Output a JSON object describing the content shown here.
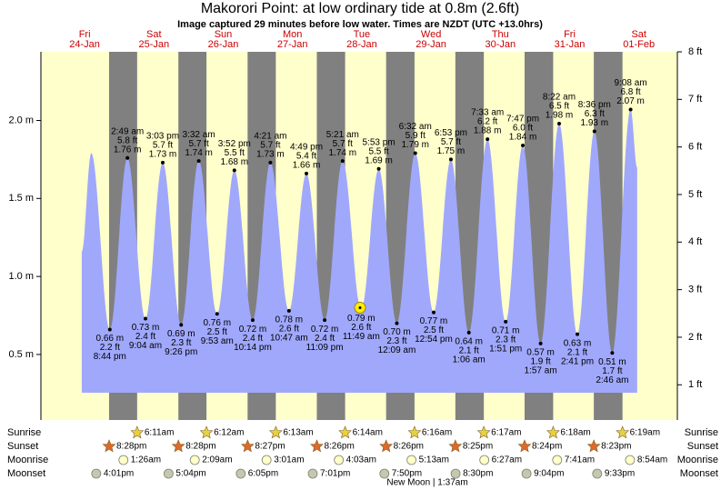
{
  "chart_data": {
    "type": "area",
    "title": "Makorori Point: at low  ordinary tide at 0.8m (2.6ft)",
    "subtitle": "Image captured 29 minutes before low water. Times are NZDT (UTC +13.0hrs)",
    "xlim": [
      -3.15,
      217.32
    ],
    "ylim": [
      0.08,
      2.44
    ],
    "y2lim": [
      0.26,
      8.0
    ],
    "yticks": [
      {
        "value": 0.5,
        "label": "0.5 m"
      },
      {
        "value": 1.0,
        "label": "1.0 m"
      },
      {
        "value": 1.5,
        "label": "1.5 m"
      },
      {
        "value": 2.0,
        "label": "2.0 m"
      }
    ],
    "y2ticks": [
      {
        "value": 1,
        "label": "1 ft"
      },
      {
        "value": 2,
        "label": "2 ft"
      },
      {
        "value": 3,
        "label": "3 ft"
      },
      {
        "value": 4,
        "label": "4 ft"
      },
      {
        "value": 5,
        "label": "5 ft"
      },
      {
        "value": 6,
        "label": "6 ft"
      },
      {
        "value": 7,
        "label": "7 ft"
      },
      {
        "value": 8,
        "label": "8 ft"
      }
    ],
    "day_color": "#ffffcc",
    "night_color": "#808080",
    "days": [
      {
        "name": "Fri",
        "date": "24-Jan",
        "x": 12
      },
      {
        "name": "Sat",
        "date": "25-Jan",
        "x": 36
      },
      {
        "name": "Sun",
        "date": "26-Jan",
        "x": 60
      },
      {
        "name": "Mon",
        "date": "27-Jan",
        "x": 84
      },
      {
        "name": "Tue",
        "date": "28-Jan",
        "x": 108
      },
      {
        "name": "Wed",
        "date": "29-Jan",
        "x": 132
      },
      {
        "name": "Thu",
        "date": "30-Jan",
        "x": 156
      },
      {
        "name": "Fri",
        "date": "31-Jan",
        "x": 180
      },
      {
        "name": "Sat",
        "date": "01-Feb",
        "x": 204
      }
    ],
    "series": [
      {
        "color": "#a0a8fc",
        "x": [
          11.0,
          14.3,
          20.73,
          26.82,
          33.07,
          39.05,
          45.43,
          51.53,
          57.88,
          63.87,
          70.23,
          76.35,
          82.78,
          88.82,
          95.15,
          101.35,
          107.82,
          113.88,
          120.15,
          126.53,
          132.9,
          138.88,
          145.1,
          151.55,
          157.85,
          163.78,
          169.95,
          176.37,
          182.68,
          188.6,
          194.77,
          201.13,
          203.4
        ],
        "values": [
          1.16,
          1.79,
          0.66,
          1.76,
          0.73,
          1.73,
          0.69,
          1.74,
          0.76,
          1.68,
          0.72,
          1.73,
          0.78,
          1.66,
          0.72,
          1.74,
          0.79,
          1.69,
          0.7,
          1.79,
          0.77,
          1.75,
          0.64,
          1.88,
          0.71,
          1.84,
          0.57,
          1.98,
          0.63,
          1.93,
          0.51,
          2.07,
          1.7
        ],
        "value_labels": [
          null,
          null,
          "0.66 m",
          "1.76 m",
          "0.73 m",
          "1.73 m",
          "0.69 m",
          "1.74 m",
          "0.76 m",
          "1.68 m",
          "0.72 m",
          "1.73 m",
          "0.78 m",
          "1.66 m",
          "0.72 m",
          "1.74 m",
          "0.79 m",
          "1.69 m",
          "0.70 m",
          "1.79 m",
          "0.77 m",
          "1.75 m",
          "0.64 m",
          "1.88 m",
          "0.71 m",
          "1.84 m",
          "0.57 m",
          "1.98 m",
          "0.63 m",
          "1.93 m",
          "0.51 m",
          "2.07 m",
          null
        ],
        "ft_labels": [
          null,
          null,
          "2.2 ft",
          "5.8 ft",
          "2.4 ft",
          "5.7 ft",
          "2.3 ft",
          "5.7 ft",
          "2.5 ft",
          "5.5 ft",
          "2.4 ft",
          "5.7 ft",
          "2.6 ft",
          "5.4 ft",
          "2.4 ft",
          "5.7 ft",
          "2.6 ft",
          "5.5 ft",
          "2.3 ft",
          "5.9 ft",
          "2.5 ft",
          "5.7 ft",
          "2.1 ft",
          "6.2 ft",
          "2.3 ft",
          "6.0 ft",
          "1.9 ft",
          "6.5 ft",
          "2.1 ft",
          "6.3 ft",
          "1.7 ft",
          "6.8 ft",
          null
        ],
        "time_labels": [
          null,
          null,
          "8:44 pm",
          "2:49 am",
          "9:04 am",
          "3:03 pm",
          "9:26 pm",
          "3:32 am",
          "9:53 am",
          "3:52 pm",
          "10:14 pm",
          "4:21 am",
          "10:47 am",
          "4:49 pm",
          "11:09 pm",
          "5:21 am",
          "11:49 am",
          "5:53 pm",
          "12:09 am",
          "6:32 am",
          "12:54 pm",
          "6:53 pm",
          "1:06 am",
          "7:33 am",
          "1:51 pm",
          "7:47 pm",
          "1:57 am",
          "8:22 am",
          "2:41 pm",
          "8:36 pm",
          "2:46 am",
          "9:08 am",
          null
        ]
      }
    ],
    "now": {
      "x": 107.4,
      "value": 0.8,
      "color": "#ffee00"
    },
    "rows": [
      {
        "label": "Sunrise",
        "icon": "star",
        "color": "#e8d040",
        "events": [
          {
            "time": "6:11am",
            "x": 30.18
          },
          {
            "time": "6:12am",
            "x": 54.2
          },
          {
            "time": "6:13am",
            "x": 78.22
          },
          {
            "time": "6:14am",
            "x": 102.23
          },
          {
            "time": "6:16am",
            "x": 126.27
          },
          {
            "time": "6:17am",
            "x": 150.28
          },
          {
            "time": "6:18am",
            "x": 174.3
          },
          {
            "time": "6:19am",
            "x": 198.32
          }
        ]
      },
      {
        "label": "Sunset",
        "icon": "star",
        "color": "#e06828",
        "events": [
          {
            "time": "8:28pm",
            "x": 20.47
          },
          {
            "time": "8:28pm",
            "x": 44.47
          },
          {
            "time": "8:27pm",
            "x": 68.45
          },
          {
            "time": "8:26pm",
            "x": 92.43
          },
          {
            "time": "8:26pm",
            "x": 116.43
          },
          {
            "time": "8:25pm",
            "x": 140.42
          },
          {
            "time": "8:24pm",
            "x": 164.4
          },
          {
            "time": "8:23pm",
            "x": 188.38
          }
        ]
      },
      {
        "label": "Moonrise",
        "icon": "circle",
        "color": "#ffffc8",
        "events": [
          {
            "time": "1:26am",
            "x": 25.43
          },
          {
            "time": "2:09am",
            "x": 50.15
          },
          {
            "time": "3:01am",
            "x": 75.02
          },
          {
            "time": "4:03am",
            "x": 100.05
          },
          {
            "time": "5:13am",
            "x": 125.22
          },
          {
            "time": "6:27am",
            "x": 150.45
          },
          {
            "time": "7:41am",
            "x": 175.68
          },
          {
            "time": "8:54am",
            "x": 200.9
          }
        ]
      },
      {
        "label": "Moonset",
        "icon": "circle",
        "color": "#c4c8b0",
        "events": [
          {
            "time": "4:01pm",
            "x": 16.02
          },
          {
            "time": "5:04pm",
            "x": 41.07
          },
          {
            "time": "6:05pm",
            "x": 66.08
          },
          {
            "time": "7:01pm",
            "x": 91.02
          },
          {
            "time": "7:50pm",
            "x": 115.83
          },
          {
            "time": "8:30pm",
            "x": 140.5
          },
          {
            "time": "9:04pm",
            "x": 165.07
          },
          {
            "time": "9:33pm",
            "x": 189.55
          }
        ]
      }
    ],
    "annotation": "New Moon | 1:37am"
  }
}
